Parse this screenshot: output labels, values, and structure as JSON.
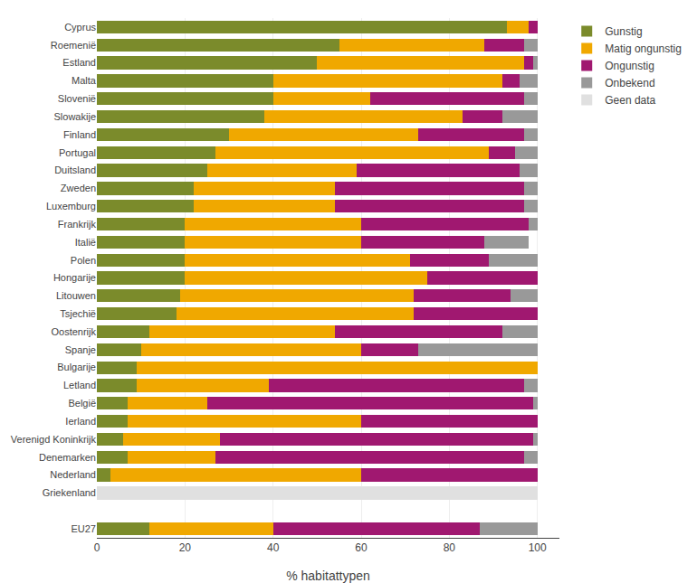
{
  "chart_data": {
    "type": "bar",
    "orientation": "horizontal",
    "stacked": true,
    "categories": [
      "Cyprus",
      "Roemenië",
      "Estland",
      "Malta",
      "Slovenië",
      "Slowakije",
      "Finland",
      "Portugal",
      "Duitsland",
      "Zweden",
      "Luxemburg",
      "Frankrijk",
      "Italië",
      "Polen",
      "Hongarije",
      "Litouwen",
      "Tsjechië",
      "Oostenrijk",
      "Spanje",
      "Bulgarije",
      "Letland",
      "België",
      "Ierland",
      "Verenigd Koninkrijk",
      "Denemarken",
      "Nederland",
      "Griekenland",
      null,
      "EU27"
    ],
    "series": [
      {
        "name": "Gunstig",
        "color": "#7b8b2b",
        "values": [
          93,
          55,
          50,
          40,
          40,
          38,
          30,
          27,
          25,
          22,
          22,
          20,
          20,
          20,
          20,
          19,
          18,
          12,
          10,
          9,
          9,
          7,
          7,
          6,
          7,
          3,
          0,
          0,
          12
        ]
      },
      {
        "name": "Matig ongunstig",
        "color": "#f0a800",
        "values": [
          5,
          33,
          47,
          52,
          22,
          45,
          43,
          62,
          34,
          32,
          32,
          40,
          40,
          51,
          55,
          53,
          54,
          42,
          50,
          91,
          30,
          18,
          53,
          22,
          20,
          57,
          0,
          0,
          28
        ]
      },
      {
        "name": "Ongunstig",
        "color": "#a01870",
        "values": [
          2,
          9,
          2,
          4,
          35,
          9,
          24,
          6,
          37,
          43,
          43,
          38,
          28,
          18,
          25,
          22,
          28,
          38,
          13,
          0,
          58,
          74,
          40,
          71,
          70,
          40,
          0,
          0,
          47
        ]
      },
      {
        "name": "Onbekend",
        "color": "#999999",
        "values": [
          0,
          3,
          1,
          4,
          3,
          8,
          3,
          5,
          4,
          3,
          3,
          2,
          10,
          11,
          0,
          6,
          0,
          8,
          27,
          0,
          3,
          1,
          0,
          1,
          3,
          0,
          0,
          0,
          13
        ]
      },
      {
        "name": "Geen data",
        "color": "#e0e0e0",
        "values": [
          0,
          0,
          0,
          0,
          0,
          0,
          0,
          0,
          0,
          0,
          0,
          0,
          0,
          0,
          0,
          0,
          0,
          0,
          0,
          0,
          0,
          0,
          0,
          0,
          0,
          0,
          100,
          0,
          0
        ]
      }
    ],
    "xlabel": "% habitattypen",
    "xlim": [
      0,
      105
    ],
    "xticks": [
      0,
      20,
      40,
      60,
      80,
      100
    ],
    "grid": true,
    "legend": "right"
  }
}
